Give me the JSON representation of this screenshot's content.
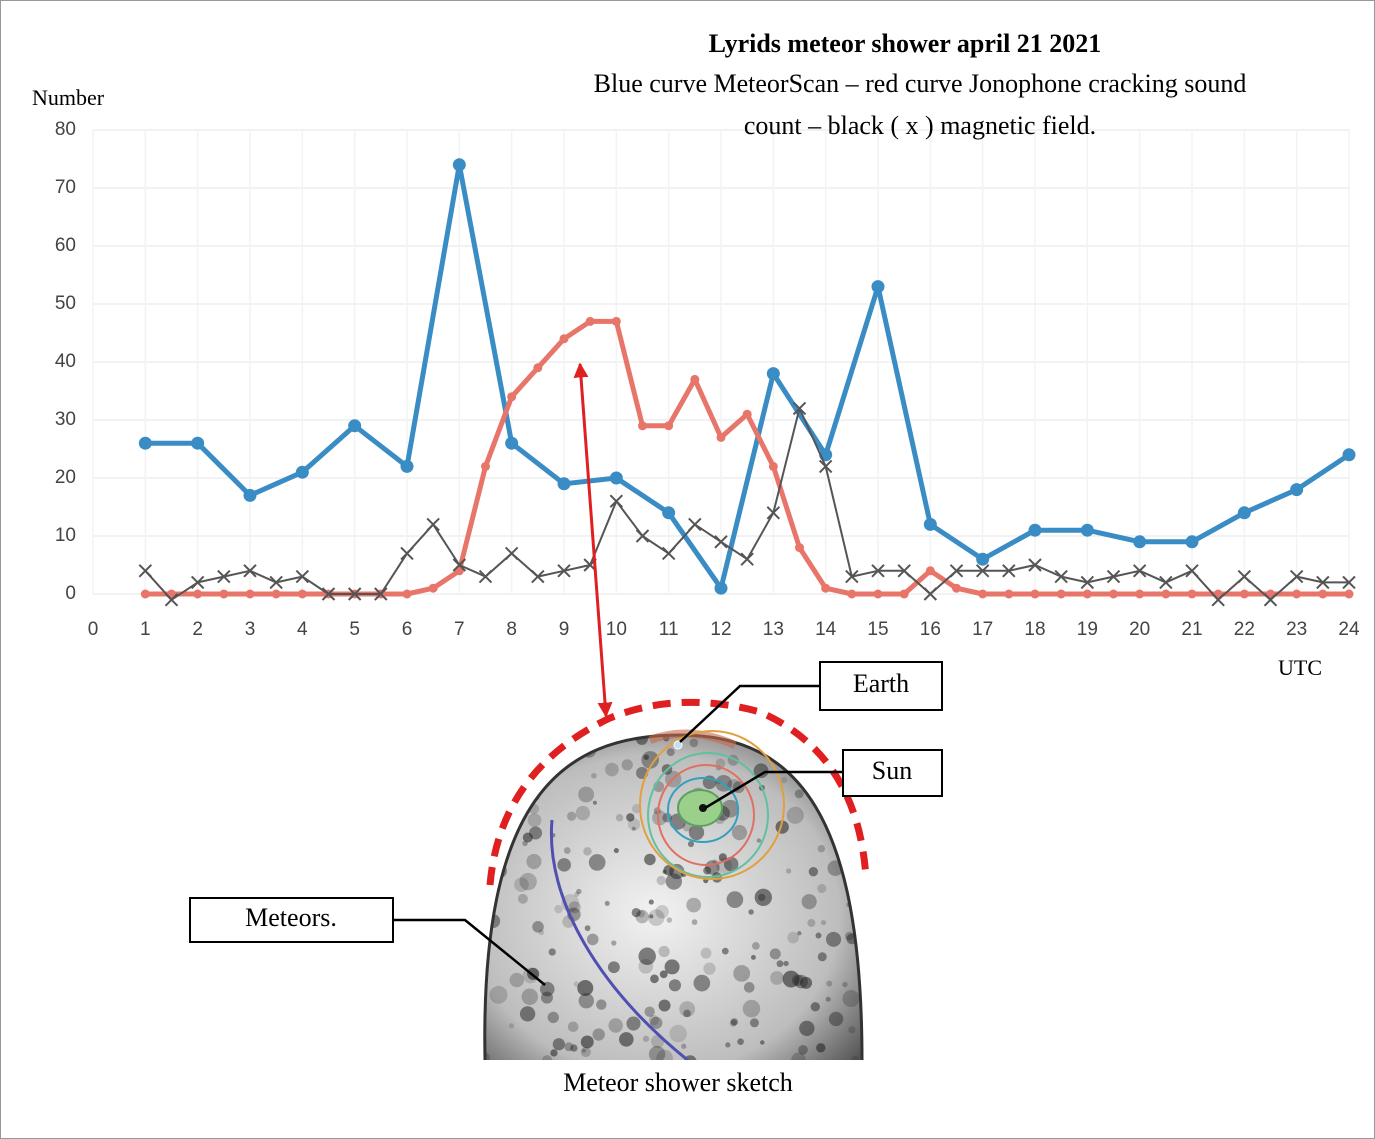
{
  "chart_data": {
    "type": "line",
    "title": "Lyrids meteor shower april 21 2021",
    "subtitle": [
      "Blue curve MeteorScan – red curve Jonophone cracking sound",
      "count – black ( x ) magnetic field."
    ],
    "ylabel": "Number",
    "xlabel": "UTC",
    "xlim": [
      0,
      24
    ],
    "xticks": [
      0,
      1,
      2,
      3,
      4,
      5,
      6,
      7,
      8,
      9,
      10,
      11,
      12,
      13,
      14,
      15,
      16,
      17,
      18,
      19,
      20,
      21,
      22,
      23,
      24
    ],
    "ylim": [
      0,
      80
    ],
    "yticks": [
      0,
      10,
      20,
      30,
      40,
      50,
      60,
      70,
      80
    ],
    "grid": true,
    "series": [
      {
        "color": "#3a8cc4",
        "marker": "circle",
        "x": [
          1,
          2,
          3,
          4,
          5,
          6,
          7,
          8,
          9,
          10,
          11,
          12,
          13,
          14,
          15,
          16,
          17,
          18,
          19,
          20,
          21,
          22,
          23,
          24
        ],
        "values": [
          26,
          26,
          17,
          21,
          29,
          22,
          74,
          26,
          19,
          20,
          14,
          1,
          38,
          24,
          53,
          12,
          6,
          11,
          11,
          9,
          9,
          14,
          18,
          24
        ]
      },
      {
        "color": "#e8756a",
        "marker": "circle",
        "x": [
          1,
          1.5,
          2,
          2.5,
          3,
          3.5,
          4,
          4.5,
          5,
          5.5,
          6,
          6.5,
          7,
          7.5,
          8,
          8.5,
          9,
          9.5,
          10,
          10.5,
          11,
          11.5,
          12,
          12.5,
          13,
          13.5,
          14,
          14.5,
          15,
          15.5,
          16,
          16.5,
          17,
          17.5,
          18,
          18.5,
          19,
          19.5,
          20,
          20.5,
          21,
          21.5,
          22,
          22.5,
          23,
          23.5,
          24
        ],
        "values": [
          0,
          0,
          0,
          0,
          0,
          0,
          0,
          0,
          0,
          0,
          0,
          1,
          4,
          22,
          34,
          39,
          44,
          47,
          47,
          29,
          29,
          37,
          27,
          31,
          22,
          8,
          1,
          0,
          0,
          0,
          4,
          1,
          0,
          0,
          0,
          0,
          0,
          0,
          0,
          0,
          0,
          0,
          0,
          0,
          0,
          0,
          0
        ]
      },
      {
        "color": "#555555",
        "marker": "x",
        "x": [
          1,
          1.5,
          2,
          2.5,
          3,
          3.5,
          4,
          4.5,
          5,
          5.5,
          6,
          6.5,
          7,
          7.5,
          8,
          8.5,
          9,
          9.5,
          10,
          10.5,
          11,
          11.5,
          12,
          12.5,
          13,
          13.5,
          14,
          14.5,
          15,
          15.5,
          16,
          16.5,
          17,
          17.5,
          18,
          18.5,
          19,
          19.5,
          20,
          20.5,
          21,
          21.5,
          22,
          22.5,
          23,
          23.5,
          24
        ],
        "values": [
          4,
          -1,
          2,
          3,
          4,
          2,
          3,
          0,
          0,
          0,
          7,
          12,
          5,
          3,
          7,
          3,
          4,
          5,
          16,
          10,
          7,
          12,
          9,
          6,
          14,
          32,
          22,
          3,
          4,
          4,
          0,
          4,
          4,
          4,
          5,
          3,
          2,
          3,
          4,
          2,
          4,
          -1,
          3,
          -1,
          3,
          2,
          2
        ]
      }
    ]
  },
  "annotations": {
    "earth": "Earth",
    "sun": "Sun",
    "meteors": "Meteors.",
    "caption": "Meteor shower sketch"
  }
}
